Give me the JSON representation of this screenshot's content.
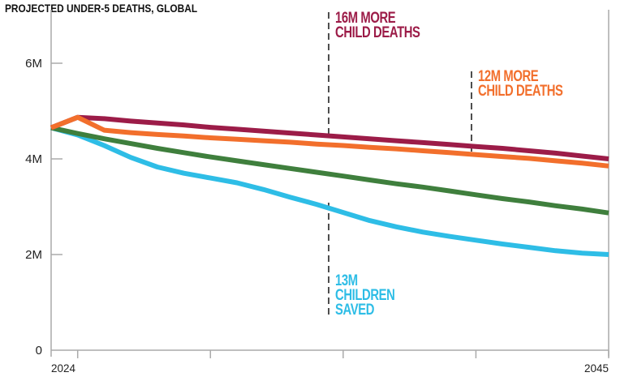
{
  "chart_data": {
    "type": "line",
    "title": "PROJECTED UNDER-5 DEATHS, GLOBAL",
    "xlabel": "",
    "ylabel": "",
    "x": [
      2024,
      2025,
      2026,
      2027,
      2028,
      2029,
      2030,
      2031,
      2032,
      2033,
      2034,
      2035,
      2036,
      2037,
      2038,
      2039,
      2040,
      2041,
      2042,
      2043,
      2044,
      2045
    ],
    "xlim": [
      2024,
      2045
    ],
    "ylim": [
      0,
      6.5
    ],
    "x_ticks": [
      2025,
      2030,
      2035,
      2040,
      2045
    ],
    "x_tick_labels": [
      {
        "year": 2024,
        "label": "2024"
      },
      {
        "year": 2045,
        "label": "2045"
      }
    ],
    "y_ticks": [
      {
        "value": 0,
        "label": "0"
      },
      {
        "value": 2,
        "label": "2M"
      },
      {
        "value": 4,
        "label": "4M"
      },
      {
        "value": 6,
        "label": "6M"
      }
    ],
    "y_unit": "millions",
    "grid": false,
    "series": [
      {
        "color": "#9c1c48",
        "values": [
          4.65,
          4.87,
          4.84,
          4.79,
          4.75,
          4.71,
          4.66,
          4.62,
          4.58,
          4.54,
          4.5,
          4.46,
          4.42,
          4.38,
          4.34,
          4.3,
          4.26,
          4.22,
          4.17,
          4.12,
          4.06,
          4.0
        ]
      },
      {
        "color": "#f26f2c",
        "values": [
          4.65,
          4.87,
          4.6,
          4.55,
          4.51,
          4.48,
          4.44,
          4.41,
          4.38,
          4.35,
          4.31,
          4.28,
          4.24,
          4.21,
          4.17,
          4.13,
          4.09,
          4.05,
          4.01,
          3.96,
          3.91,
          3.85
        ]
      },
      {
        "color": "#3f7f3d",
        "values": [
          4.65,
          4.53,
          4.42,
          4.32,
          4.22,
          4.13,
          4.04,
          3.96,
          3.88,
          3.8,
          3.72,
          3.64,
          3.56,
          3.48,
          3.41,
          3.33,
          3.25,
          3.17,
          3.1,
          3.02,
          2.95,
          2.87
        ]
      },
      {
        "color": "#2ebde6",
        "values": [
          4.65,
          4.5,
          4.28,
          4.03,
          3.83,
          3.7,
          3.6,
          3.5,
          3.36,
          3.2,
          3.05,
          2.88,
          2.71,
          2.58,
          2.47,
          2.38,
          2.3,
          2.22,
          2.15,
          2.08,
          2.03,
          2.0
        ]
      }
    ],
    "annotations": [
      {
        "lines": [
          "16M MORE",
          "CHILD DEATHS"
        ],
        "color": "#9c1c48",
        "year": 2034
      },
      {
        "lines": [
          "12M MORE",
          "CHILD DEATHS"
        ],
        "color": "#f26f2c",
        "year": 2039
      },
      {
        "lines": [
          "13M",
          "CHILDREN",
          "SAVED"
        ],
        "color": "#2ebde6",
        "year": 2034
      }
    ]
  }
}
